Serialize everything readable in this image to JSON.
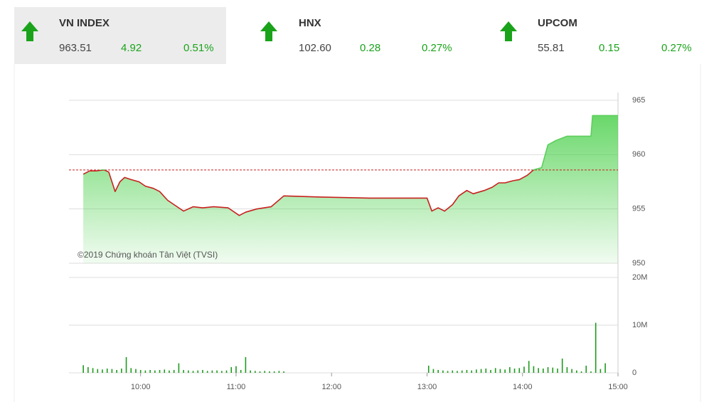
{
  "tickers": [
    {
      "name": "VN INDEX",
      "value": "963.51",
      "change": "4.92",
      "percent": "0.51%"
    },
    {
      "name": "HNX",
      "value": "102.60",
      "change": "0.28",
      "percent": "0.27%"
    },
    {
      "name": "UPCOM",
      "value": "55.81",
      "change": "0.15",
      "percent": "0.27%"
    }
  ],
  "chart_data": [
    {
      "type": "line",
      "annotation": "©2019 Chứng khoán Tân Việt (TVSI)",
      "x": [
        564,
        568,
        572,
        577,
        580,
        582,
        584,
        587,
        590,
        594,
        599,
        603,
        608,
        612,
        617,
        621,
        627,
        633,
        639,
        646,
        655,
        662,
        666,
        673,
        682,
        690,
        713,
        744,
        780,
        783,
        787,
        791,
        796,
        800,
        805,
        809,
        816,
        821,
        825,
        829,
        834,
        838,
        843,
        847,
        852,
        856,
        861,
        868,
        883,
        884,
        900
      ],
      "values": [
        958.2,
        958.5,
        958.5,
        958.6,
        958.4,
        957.5,
        956.6,
        957.5,
        957.9,
        957.7,
        957.5,
        957.1,
        956.9,
        956.6,
        955.8,
        955.4,
        954.8,
        955.2,
        955.1,
        955.2,
        955.1,
        954.4,
        954.7,
        955.0,
        955.2,
        956.2,
        956.1,
        956.0,
        956.0,
        954.8,
        955.1,
        954.8,
        955.4,
        956.2,
        956.7,
        956.4,
        956.7,
        957.0,
        957.4,
        957.4,
        957.6,
        957.7,
        958.1,
        958.6,
        958.8,
        960.9,
        961.3,
        961.7,
        961.7,
        963.6,
        963.6
      ],
      "reference": 958.59,
      "xlim": [
        555,
        900
      ],
      "ylim": [
        950,
        965
      ],
      "yticks": [
        950,
        955,
        960,
        965
      ],
      "grid": true,
      "color_below": "#c8201e",
      "color_above": "#5ccf5c",
      "area_color": "#4fd14f",
      "reference_color": "#c8201e"
    },
    {
      "type": "bar",
      "x": [
        564,
        567,
        570,
        573,
        576,
        579,
        582,
        585,
        588,
        591,
        594,
        597,
        600,
        603,
        606,
        609,
        612,
        615,
        618,
        621,
        624,
        627,
        630,
        633,
        636,
        639,
        642,
        645,
        648,
        651,
        654,
        657,
        660,
        663,
        666,
        669,
        672,
        675,
        678,
        681,
        684,
        687,
        690,
        781,
        784,
        787,
        790,
        793,
        796,
        799,
        802,
        805,
        808,
        811,
        814,
        817,
        820,
        823,
        826,
        829,
        832,
        835,
        838,
        841,
        844,
        847,
        850,
        853,
        856,
        859,
        862,
        865,
        868,
        871,
        874,
        877,
        880,
        883,
        886,
        889,
        892
      ],
      "values": [
        1.6,
        1.2,
        1.0,
        0.8,
        0.7,
        0.9,
        0.8,
        0.6,
        0.9,
        3.3,
        1.0,
        0.8,
        0.6,
        0.5,
        0.6,
        0.5,
        0.6,
        0.7,
        0.5,
        0.6,
        2.0,
        0.6,
        0.5,
        0.4,
        0.5,
        0.6,
        0.4,
        0.5,
        0.5,
        0.4,
        0.5,
        1.2,
        1.4,
        0.6,
        3.3,
        0.5,
        0.4,
        0.3,
        0.4,
        0.3,
        0.3,
        0.4,
        0.3,
        1.5,
        0.8,
        0.6,
        0.5,
        0.4,
        0.5,
        0.4,
        0.5,
        0.6,
        0.5,
        0.7,
        0.8,
        0.9,
        0.6,
        1.0,
        0.8,
        0.7,
        1.2,
        0.9,
        1.0,
        1.3,
        2.5,
        1.4,
        1.0,
        0.9,
        1.2,
        1.1,
        0.9,
        3.0,
        1.2,
        0.8,
        0.5,
        0.3,
        1.5,
        0.3,
        10.5,
        0.8,
        2.0
      ],
      "xlim": [
        555,
        900
      ],
      "xticks": [
        {
          "value": 600,
          "label": "10:00"
        },
        {
          "value": 660,
          "label": "11:00"
        },
        {
          "value": 720,
          "label": "12:00"
        },
        {
          "value": 780,
          "label": "13:00"
        },
        {
          "value": 840,
          "label": "14:00"
        },
        {
          "value": 900,
          "label": "15:00"
        }
      ],
      "ylim": [
        0,
        20
      ],
      "yticks": [
        0,
        {
          "value": 10,
          "label": "10M"
        },
        {
          "value": 20,
          "label": "20M"
        }
      ],
      "grid": true,
      "color": "#1e9a1e"
    }
  ]
}
